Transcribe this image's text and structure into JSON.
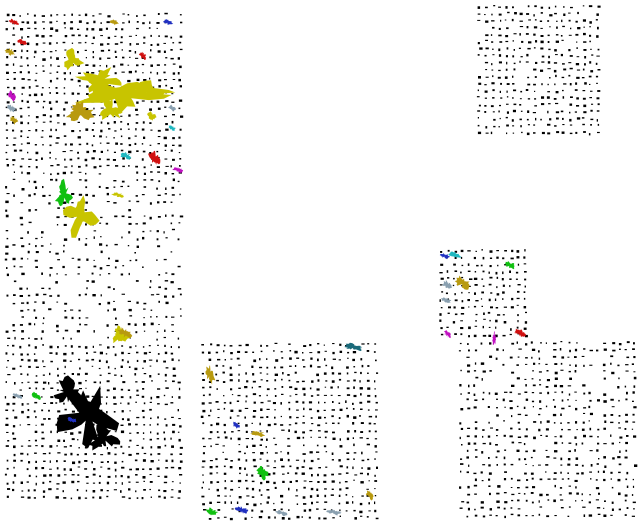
{
  "image": {
    "background": "#ffffff",
    "dot_color": "#000000",
    "description_free": true
  },
  "panels": [
    {
      "id": "panel-top-left-grid"
    },
    {
      "id": "panel-top-right-grid"
    },
    {
      "id": "panel-mid-right-small-grid"
    },
    {
      "id": "panel-bottom-center-grid"
    },
    {
      "id": "panel-bottom-right-grid"
    }
  ],
  "blob_colors": {
    "yellow": "#c8c400",
    "olive": "#b89a10",
    "red": "#d01010",
    "blue": "#2030c0",
    "cyan": "#20b8c0",
    "magenta": "#c010c0",
    "green": "#10c010",
    "gray_blue": "#8aa0b0",
    "black": "#000000",
    "teal": "#1a6a7a"
  }
}
